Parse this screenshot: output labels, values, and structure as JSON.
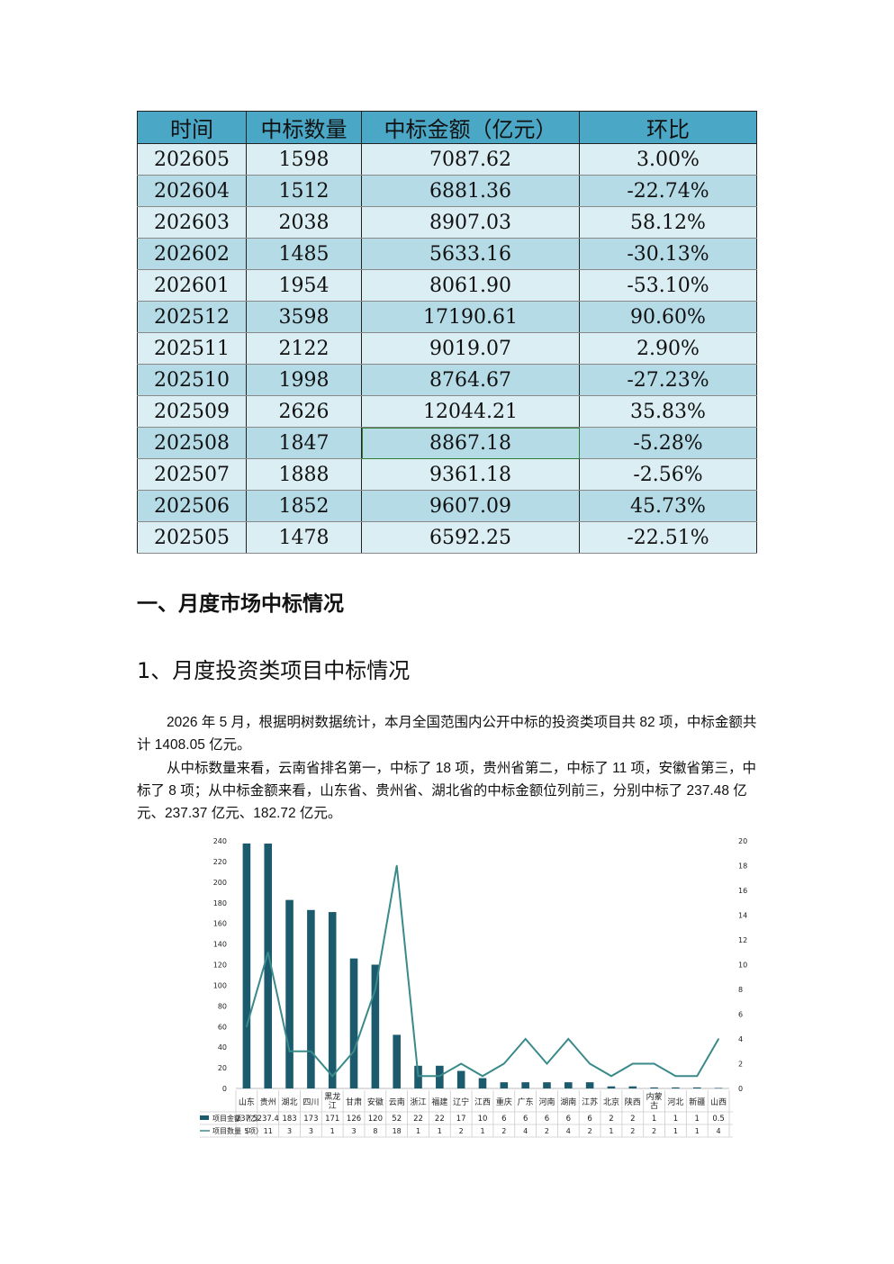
{
  "table": {
    "headers": [
      "时间",
      "中标数量",
      "中标金额（亿元）",
      "环比"
    ],
    "rows": [
      [
        "202605",
        "1598",
        "7087.62",
        "3.00%"
      ],
      [
        "202604",
        "1512",
        "6881.36",
        "-22.74%"
      ],
      [
        "202603",
        "2038",
        "8907.03",
        "58.12%"
      ],
      [
        "202602",
        "1485",
        "5633.16",
        "-30.13%"
      ],
      [
        "202601",
        "1954",
        "8061.90",
        "-53.10%"
      ],
      [
        "202512",
        "3598",
        "17190.61",
        "90.60%"
      ],
      [
        "202511",
        "2122",
        "9019.07",
        "2.90%"
      ],
      [
        "202510",
        "1998",
        "8764.67",
        "-27.23%"
      ],
      [
        "202509",
        "2626",
        "12044.21",
        "35.83%"
      ],
      [
        "202508",
        "1847",
        "8867.18",
        "-5.28%"
      ],
      [
        "202507",
        "1888",
        "9361.18",
        "-2.56%"
      ],
      [
        "202506",
        "1852",
        "9607.09",
        "45.73%"
      ],
      [
        "202505",
        "1478",
        "6592.25",
        "-22.51%"
      ]
    ]
  },
  "section_heading": "一、月度市场中标情况",
  "subsection_heading": "1、月度投资类项目中标情况",
  "paragraph1": "2026 年 5 月，根据明树数据统计，本月全国范围内公开中标的投资类项目共 82 项，中标金额共计 1408.05 亿元。",
  "paragraph2": "从中标数量来看，云南省排名第一，中标了 18 项，贵州省第二，中标了 11 项，安徽省第三，中标了 8 项；从中标金额来看，山东省、贵州省、湖北省的中标金额位列前三，分别中标了 237.48 亿元、237.37 亿元、182.72 亿元。",
  "colors": {
    "bar": "#1c5a6e",
    "line": "#3a8a8a",
    "table_header": "#4aa7c6"
  },
  "chart_data": {
    "type": "bar",
    "categories": [
      "山东",
      "贵州",
      "湖北",
      "四川",
      "黑龙江",
      "甘肃",
      "安徽",
      "云南",
      "浙江",
      "福建",
      "辽宁",
      "江西",
      "重庆",
      "广东",
      "河南",
      "湖南",
      "江苏",
      "北京",
      "陕西",
      "内蒙古",
      "河北",
      "新疆",
      "山西"
    ],
    "series": [
      {
        "name": "项目金额（亿）",
        "type": "bar",
        "axis": "left",
        "values": [
          237.48,
          237.37,
          182.72,
          173,
          171,
          126,
          120,
          52,
          22,
          22,
          17,
          10,
          6,
          6,
          6,
          6,
          6,
          2,
          2,
          1,
          1,
          1,
          0.5
        ],
        "labels": [
          "237.5",
          "237.4",
          "183",
          "173",
          "171",
          "126",
          "120",
          "52",
          "22",
          "22",
          "17",
          "10",
          "6",
          "6",
          "6",
          "6",
          "6",
          "2",
          "2",
          "1",
          "1",
          "1",
          "0.5"
        ]
      },
      {
        "name": "项目数量（项）",
        "type": "line",
        "axis": "right",
        "values": [
          5,
          11,
          3,
          3,
          1,
          3,
          8,
          18,
          1,
          1,
          2,
          1,
          2,
          4,
          2,
          4,
          2,
          1,
          2,
          2,
          1,
          1,
          4
        ],
        "labels": [
          "5",
          "11",
          "3",
          "3",
          "1",
          "3",
          "8",
          "18",
          "1",
          "1",
          "2",
          "1",
          "2",
          "4",
          "2",
          "4",
          "2",
          "1",
          "2",
          "2",
          "1",
          "1",
          "4"
        ]
      }
    ],
    "y_left": {
      "min": 0,
      "max": 240,
      "ticks": [
        "0",
        "20",
        "40",
        "60",
        "80",
        "100",
        "120",
        "140",
        "160",
        "180",
        "200",
        "220",
        "240"
      ]
    },
    "y_right": {
      "min": 0,
      "max": 20,
      "ticks": [
        "0",
        "2",
        "4",
        "6",
        "8",
        "10",
        "12",
        "14",
        "16",
        "18",
        "20"
      ]
    },
    "grid": false,
    "legend": "data-table-below"
  }
}
